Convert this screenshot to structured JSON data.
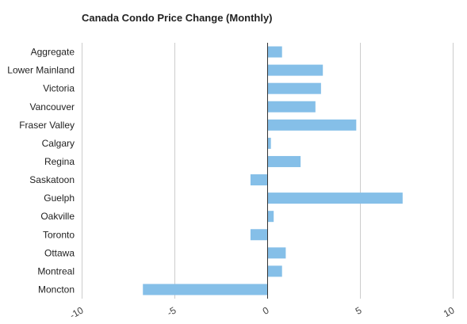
{
  "colors": {
    "bar": "#85bfe8",
    "grid": "#cccccc",
    "zero_line": "#333333",
    "text": "#222222",
    "background": "#ffffff"
  },
  "chart_data": {
    "type": "bar",
    "orientation": "horizontal",
    "title": "Canada Condo Price Change (Monthly)",
    "xlabel": "",
    "ylabel": "",
    "xlim": [
      -10,
      10
    ],
    "x_ticks": [
      -10,
      -5,
      0,
      5,
      10
    ],
    "tick_labels": [
      "-10",
      "-5",
      "0",
      "5",
      "10"
    ],
    "grid": true,
    "legend": "none",
    "categories": [
      "Aggregate",
      "Lower Mainland",
      "Victoria",
      "Vancouver",
      "Fraser Valley",
      "Calgary",
      "Regina",
      "Saskatoon",
      "Guelph",
      "Oakville",
      "Toronto",
      "Ottawa",
      "Montreal",
      "Moncton"
    ],
    "values": [
      0.8,
      3.0,
      2.9,
      2.6,
      4.8,
      0.2,
      1.8,
      -0.9,
      7.3,
      0.35,
      -0.9,
      1.0,
      0.8,
      -6.7
    ]
  }
}
